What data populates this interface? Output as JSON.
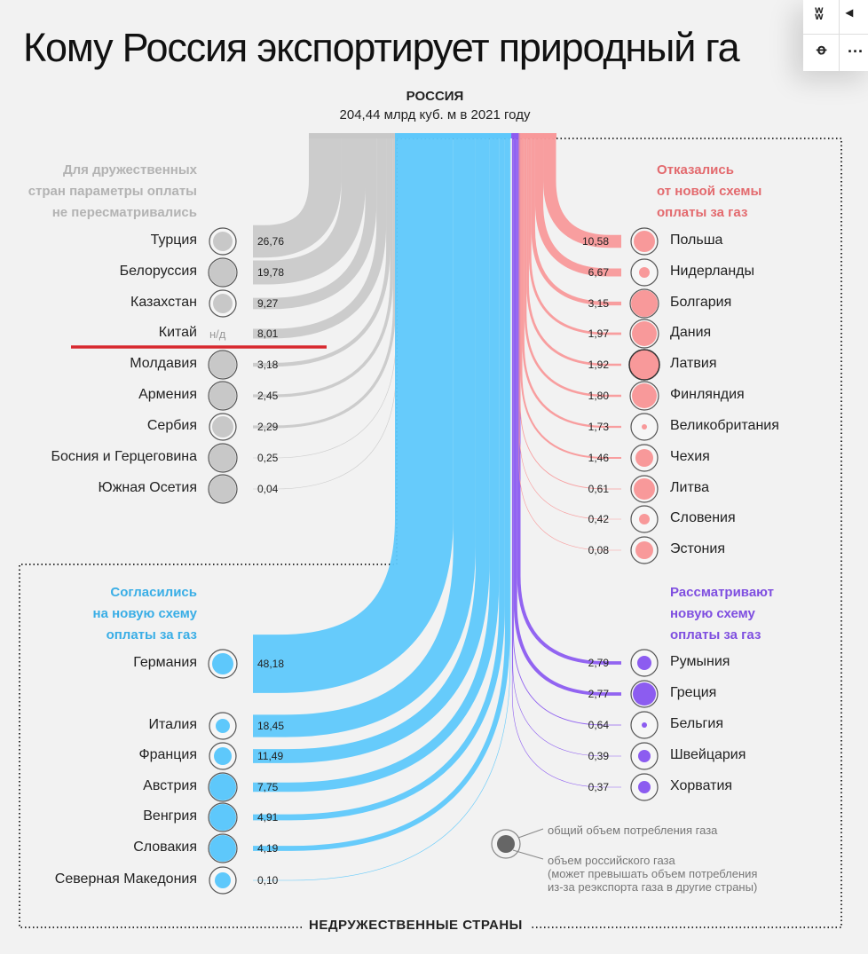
{
  "title": "Кому Россия экспортирует природный га",
  "share": {
    "vk": "vk",
    "ok": "ok",
    "more": "···",
    "telegram": "telegram-icon"
  },
  "source": {
    "name": "РОССИЯ",
    "total": "204,44 млрд куб. м в 2021 году",
    "total_value": 204.44
  },
  "colors": {
    "friendly": "#c8c8c8",
    "agreed": "#5ec8fb",
    "refused": "#f8999a",
    "considering": "#8c5cf0",
    "highlight": "#d8282e"
  },
  "groups": {
    "friendly": {
      "note": [
        "Для дружественных",
        "стран параметры оплаты",
        "не пересматривались"
      ],
      "items": [
        {
          "name": "Турция",
          "value": "26,76",
          "v": 26.76
        },
        {
          "name": "Белоруссия",
          "value": "19,78",
          "v": 19.78
        },
        {
          "name": "Казахстан",
          "value": "9,27",
          "v": 9.27
        },
        {
          "name": "Китай",
          "value": "8,01",
          "v": 8.01,
          "circle_text": "н/д",
          "highlighted": true
        },
        {
          "name": "Молдавия",
          "value": "3,18",
          "v": 3.18
        },
        {
          "name": "Армения",
          "value": "2,45",
          "v": 2.45
        },
        {
          "name": "Сербия",
          "value": "2,29",
          "v": 2.29
        },
        {
          "name": "Босния и Герцеговина",
          "value": "0,25",
          "v": 0.25
        },
        {
          "name": "Южная Осетия",
          "value": "0,04",
          "v": 0.04
        }
      ]
    },
    "refused": {
      "note": [
        "Отказались",
        "от новой схемы",
        "оплаты за газ"
      ],
      "items": [
        {
          "name": "Польша",
          "value": "10,58",
          "v": 10.58
        },
        {
          "name": "Нидерланды",
          "value": "6,67",
          "v": 6.67
        },
        {
          "name": "Болгария",
          "value": "3,15",
          "v": 3.15
        },
        {
          "name": "Дания",
          "value": "1,97",
          "v": 1.97
        },
        {
          "name": "Латвия",
          "value": "1,92",
          "v": 1.92
        },
        {
          "name": "Финляндия",
          "value": "1,80",
          "v": 1.8
        },
        {
          "name": "Великобритания",
          "value": "1,73",
          "v": 1.73
        },
        {
          "name": "Чехия",
          "value": "1,46",
          "v": 1.46
        },
        {
          "name": "Литва",
          "value": "0,61",
          "v": 0.61
        },
        {
          "name": "Словения",
          "value": "0,42",
          "v": 0.42
        },
        {
          "name": "Эстония",
          "value": "0,08",
          "v": 0.08
        }
      ]
    },
    "agreed": {
      "note": [
        "Согласились",
        "на новую схему",
        "оплаты за газ"
      ],
      "items": [
        {
          "name": "Германия",
          "value": "48,18",
          "v": 48.18
        },
        {
          "name": "Италия",
          "value": "18,45",
          "v": 18.45
        },
        {
          "name": "Франция",
          "value": "11,49",
          "v": 11.49
        },
        {
          "name": "Австрия",
          "value": "7,75",
          "v": 7.75
        },
        {
          "name": "Венгрия",
          "value": "4,91",
          "v": 4.91
        },
        {
          "name": "Словакия",
          "value": "4,19",
          "v": 4.19
        },
        {
          "name": "Северная Македония",
          "value": "0,10",
          "v": 0.1
        }
      ]
    },
    "considering": {
      "note": [
        "Рассматривают",
        "новую схему",
        "оплаты за газ"
      ],
      "items": [
        {
          "name": "Румыния",
          "value": "2,79",
          "v": 2.79
        },
        {
          "name": "Греция",
          "value": "2,77",
          "v": 2.77
        },
        {
          "name": "Бельгия",
          "value": "0,64",
          "v": 0.64
        },
        {
          "name": "Швейцария",
          "value": "0,39",
          "v": 0.39
        },
        {
          "name": "Хорватия",
          "value": "0,37",
          "v": 0.37
        }
      ]
    }
  },
  "legend": {
    "outer": "общий объем потребления газа",
    "inner": [
      "объем российского газа",
      "(может превышать объем потребления",
      "из-за реэкспорта газа в другие страны)"
    ]
  },
  "unfriendly_label": "НЕДРУЖЕСТВЕННЫЕ СТРАНЫ"
}
